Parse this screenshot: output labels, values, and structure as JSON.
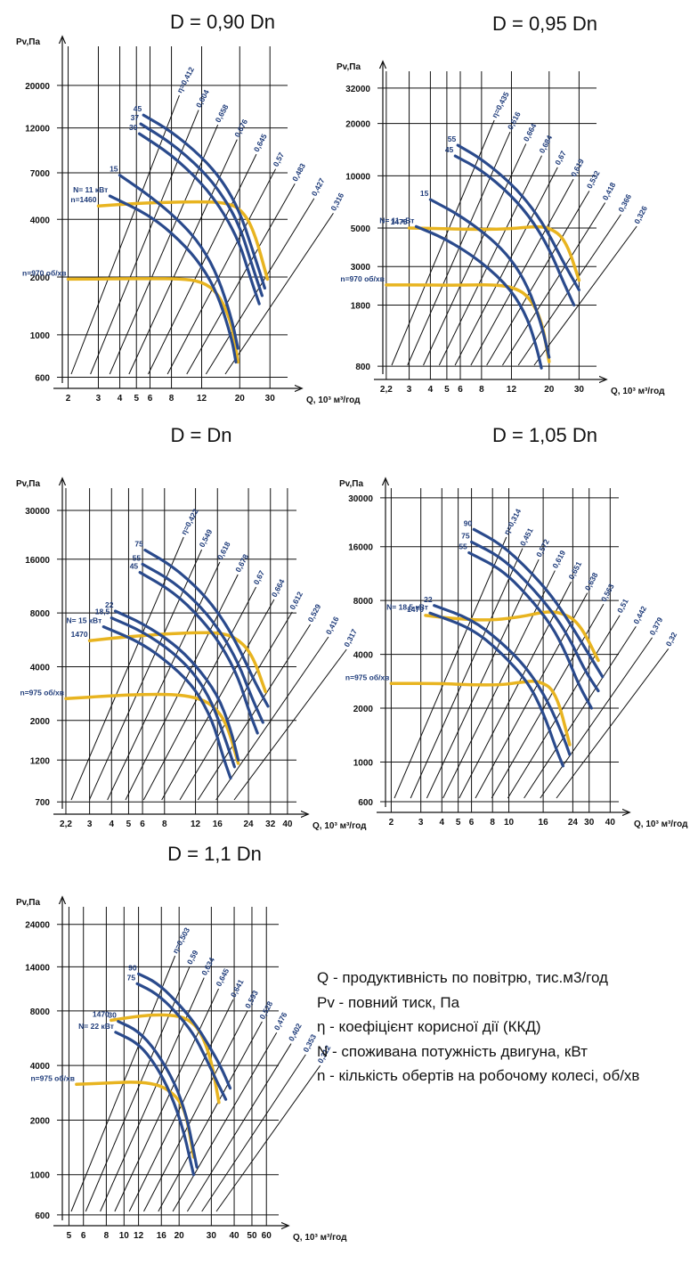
{
  "colors": {
    "power_line": "#2a4a8c",
    "speed_curve": "#e8b420",
    "grid": "#111111"
  },
  "chart_data": [
    {
      "type": "line",
      "title": "D = 0,90 Dn",
      "ylabel": "Pv,Па",
      "xlabel": "Q, 10³ м³/год",
      "x_scale": "log",
      "y_scale": "log",
      "xlim": [
        1.85,
        38
      ],
      "ylim": [
        560,
        32000
      ],
      "x_ticks": [
        2,
        3,
        4,
        5,
        6,
        8,
        12,
        20,
        30
      ],
      "y_ticks": [
        600,
        1000,
        2000,
        4000,
        7000,
        12000,
        20000
      ],
      "x_tick_labels": [
        "2",
        "3",
        "4",
        "5",
        "6",
        "8",
        "12",
        "20",
        "30"
      ],
      "y_tick_labels": [
        "600",
        "1000",
        "2000",
        "4000",
        "7000",
        "12000",
        "20000"
      ],
      "grid": true,
      "series": [
        {
          "name": "n=1460",
          "kind": "speed",
          "x": [
            3.0,
            5.0,
            8.0,
            12.0,
            16.0,
            20.0,
            24.0,
            29.0
          ],
          "y": [
            4700,
            4850,
            4920,
            4950,
            4900,
            4600,
            3600,
            1950
          ]
        },
        {
          "name": "n=970 об/хв",
          "kind": "speed",
          "x": [
            2.0,
            4.0,
            6.0,
            9.0,
            12.0,
            15.0,
            18.0,
            19.5
          ],
          "y": [
            1950,
            1960,
            1960,
            1960,
            1900,
            1650,
            1150,
            720
          ]
        },
        {
          "name": "45",
          "kind": "power",
          "x": [
            5.5,
            8.0,
            12.0,
            16.0,
            20.0,
            24.0,
            28.0
          ],
          "y": [
            14000,
            11500,
            8500,
            6300,
            4400,
            2700,
            1750
          ]
        },
        {
          "name": "37",
          "kind": "power",
          "x": [
            5.3,
            8.0,
            12.0,
            16.0,
            20.0,
            24.0,
            27.0
          ],
          "y": [
            12600,
            10000,
            7300,
            5300,
            3700,
            2200,
            1600
          ]
        },
        {
          "name": "30",
          "kind": "power",
          "x": [
            5.2,
            8.0,
            12.0,
            16.0,
            20.0,
            23.0,
            26.0
          ],
          "y": [
            11200,
            8700,
            6200,
            4400,
            3000,
            2000,
            1450
          ]
        },
        {
          "name": "15",
          "kind": "power",
          "x": [
            4.0,
            6.0,
            9.0,
            12.0,
            15.0,
            18.0,
            19.5
          ],
          "y": [
            6800,
            5300,
            3900,
            2900,
            2000,
            1200,
            850
          ]
        },
        {
          "name": "N= 11 кВт",
          "kind": "power",
          "x": [
            3.5,
            6.0,
            9.0,
            12.0,
            15.0,
            18.0,
            19.0
          ],
          "y": [
            5300,
            4200,
            3100,
            2300,
            1600,
            950,
            720
          ]
        }
      ],
      "efficiency_labels": [
        "η=0,412",
        "0,604",
        "0,658",
        "0,676",
        "0,645",
        "0,57",
        "0,483",
        "0,427",
        "0,316"
      ],
      "speed_labels": [
        "1460",
        "n=970 об/хв"
      ]
    },
    {
      "type": "line",
      "title": "D = 0,95 Dn",
      "ylabel": "Pv,Па",
      "xlabel": "Q, 10³ м³/год",
      "x_scale": "log",
      "y_scale": "log",
      "xlim": [
        2.1,
        38
      ],
      "ylim": [
        720,
        40000
      ],
      "x_ticks": [
        2.2,
        3,
        4,
        5,
        6,
        8,
        12,
        20,
        30
      ],
      "y_ticks": [
        800,
        1800,
        3000,
        5000,
        10000,
        20000,
        32000
      ],
      "x_tick_labels": [
        "2,2",
        "3",
        "4",
        "5",
        "6",
        "8",
        "12",
        "20",
        "30"
      ],
      "y_tick_labels": [
        "800",
        "1800",
        "3000",
        "5000",
        "10000",
        "20000",
        "32000"
      ],
      "grid": true,
      "series": [
        {
          "name": "1475",
          "kind": "speed",
          "x": [
            3.0,
            5.0,
            8.0,
            12.0,
            16.0,
            20.0,
            25.0,
            30.0
          ],
          "y": [
            5000,
            4950,
            4900,
            4950,
            5100,
            5050,
            4300,
            2500
          ]
        },
        {
          "name": "n=970 об/хв",
          "kind": "speed",
          "x": [
            2.2,
            4.0,
            6.0,
            9.0,
            12.0,
            15.0,
            18.0,
            20.0
          ],
          "y": [
            2350,
            2350,
            2340,
            2360,
            2300,
            2050,
            1500,
            850
          ]
        },
        {
          "name": "55",
          "kind": "power",
          "x": [
            5.8,
            8.0,
            12.0,
            16.0,
            20.0,
            25.0,
            30.0
          ],
          "y": [
            15000,
            12500,
            9000,
            6500,
            4600,
            3000,
            2200
          ]
        },
        {
          "name": "45",
          "kind": "power",
          "x": [
            5.6,
            8.0,
            12.0,
            16.0,
            20.0,
            24.0,
            28.0
          ],
          "y": [
            13000,
            10800,
            7700,
            5500,
            3800,
            2500,
            1800
          ]
        },
        {
          "name": "15",
          "kind": "power",
          "x": [
            4.0,
            6.0,
            9.0,
            12.0,
            15.0,
            18.0,
            20.0
          ],
          "y": [
            7300,
            5900,
            4400,
            3300,
            2300,
            1400,
            900
          ]
        },
        {
          "name": "N= 11 кВт",
          "kind": "power",
          "x": [
            3.3,
            5.0,
            8.0,
            12.0,
            15.0,
            17.0,
            18.0
          ],
          "y": [
            5100,
            4300,
            3200,
            2200,
            1500,
            1000,
            780
          ]
        }
      ],
      "efficiency_labels": [
        "η=0,435",
        "0,616",
        "0,664",
        "0,684",
        "0,67",
        "0,619",
        "0,532",
        "0,418",
        "0,366",
        "0,326"
      ],
      "speed_labels": [
        "1475",
        "n=970 об/хв"
      ]
    },
    {
      "type": "line",
      "title": "D = Dn",
      "ylabel": "Pv,Па",
      "xlabel": "Q, 10³ м³/год",
      "x_scale": "log",
      "y_scale": "log",
      "xlim": [
        2.1,
        45
      ],
      "ylim": [
        640,
        40000
      ],
      "x_ticks": [
        2.2,
        3,
        4,
        5,
        6,
        8,
        12,
        16,
        24,
        32,
        40
      ],
      "y_ticks": [
        700,
        1200,
        2000,
        4000,
        8000,
        16000,
        30000
      ],
      "x_tick_labels": [
        "2,2",
        "3",
        "4",
        "5",
        "6",
        "8",
        "12",
        "16",
        "24",
        "32",
        "40"
      ],
      "y_tick_labels": [
        "700",
        "1200",
        "2000",
        "4000",
        "8000",
        "16000",
        "30000"
      ],
      "grid": true,
      "series": [
        {
          "name": "1470",
          "kind": "speed",
          "x": [
            3.0,
            5.0,
            8.0,
            12.0,
            16.0,
            20.0,
            25.0,
            30.0
          ],
          "y": [
            5600,
            5900,
            6100,
            6200,
            6200,
            5900,
            4800,
            2900
          ]
        },
        {
          "name": "n=975 об/хв",
          "kind": "speed",
          "x": [
            2.2,
            4.0,
            6.0,
            9.0,
            12.0,
            15.0,
            18.0,
            21.0
          ],
          "y": [
            2650,
            2750,
            2800,
            2800,
            2700,
            2450,
            1950,
            1150
          ]
        },
        {
          "name": "75",
          "kind": "power",
          "x": [
            6.2,
            9.0,
            13.0,
            17.0,
            21.0,
            26.0,
            31.0
          ],
          "y": [
            18000,
            14500,
            10500,
            7500,
            5200,
            3300,
            2400
          ]
        },
        {
          "name": "55",
          "kind": "power",
          "x": [
            6.0,
            9.0,
            13.0,
            17.0,
            21.0,
            25.0,
            29.0
          ],
          "y": [
            15000,
            12000,
            8600,
            6100,
            4200,
            2700,
            1950
          ]
        },
        {
          "name": "45",
          "kind": "power",
          "x": [
            5.8,
            9.0,
            13.0,
            17.0,
            21.0,
            24.0,
            27.0
          ],
          "y": [
            13500,
            10500,
            7400,
            5200,
            3500,
            2300,
            1700
          ]
        },
        {
          "name": "22",
          "kind": "power",
          "x": [
            4.2,
            6.0,
            9.0,
            12.0,
            16.0,
            19.0,
            21.0
          ],
          "y": [
            8200,
            7000,
            5400,
            4100,
            2800,
            1800,
            1200
          ]
        },
        {
          "name": "18,5",
          "kind": "power",
          "x": [
            4.0,
            6.0,
            9.0,
            12.0,
            15.0,
            18.0,
            20.0
          ],
          "y": [
            7500,
            6300,
            4800,
            3600,
            2500,
            1500,
            1100
          ]
        },
        {
          "name": "N= 15 кВт",
          "kind": "power",
          "x": [
            3.6,
            6.0,
            9.0,
            12.0,
            15.0,
            17.0,
            19.0
          ],
          "y": [
            6700,
            5400,
            4000,
            3000,
            2000,
            1300,
            950
          ]
        }
      ],
      "efficiency_labels": [
        "η=0,422",
        "0,549",
        "0,618",
        "0,678",
        "0,67",
        "0,664",
        "0,612",
        "0,529",
        "0,416",
        "0,317"
      ],
      "speed_labels": [
        "1470",
        "n=975 об/хв"
      ]
    },
    {
      "type": "line",
      "title": "D = 1,05 Dn",
      "ylabel": "Pv,Па",
      "xlabel": "Q, 10³ м³/год",
      "x_scale": "log",
      "y_scale": "log",
      "xlim": [
        1.85,
        45
      ],
      "ylim": [
        560,
        34000
      ],
      "x_ticks": [
        2,
        3,
        4,
        5,
        6,
        8,
        10,
        16,
        24,
        30,
        40
      ],
      "y_ticks": [
        600,
        1000,
        2000,
        4000,
        8000,
        16000,
        30000
      ],
      "x_tick_labels": [
        "2",
        "3",
        "4",
        "5",
        "6",
        "8",
        "10",
        "16",
        "24",
        "30",
        "40"
      ],
      "y_tick_labels": [
        "600",
        "1000",
        "2000",
        "4000",
        "8000",
        "16000",
        "30000"
      ],
      "grid": true,
      "series": [
        {
          "name": "1470",
          "kind": "speed",
          "x": [
            3.2,
            5.0,
            8.0,
            12.0,
            16.0,
            20.0,
            26.0,
            34.0
          ],
          "y": [
            6600,
            6300,
            6200,
            6500,
            6900,
            6900,
            6100,
            3700
          ]
        },
        {
          "name": "n=975 об/хв",
          "kind": "speed",
          "x": [
            2.0,
            4.0,
            6.0,
            9.0,
            12.0,
            15.0,
            19.0,
            23.0
          ],
          "y": [
            2750,
            2750,
            2700,
            2700,
            2800,
            2850,
            2500,
            1250
          ]
        },
        {
          "name": "90",
          "kind": "power",
          "x": [
            6.2,
            9.0,
            13.0,
            18.0,
            23.0,
            29.0,
            36.0
          ],
          "y": [
            20000,
            16500,
            12000,
            8500,
            6000,
            4200,
            3000
          ]
        },
        {
          "name": "75",
          "kind": "power",
          "x": [
            6.0,
            9.0,
            13.0,
            18.0,
            23.0,
            28.0,
            34.0
          ],
          "y": [
            17000,
            14000,
            10000,
            7000,
            4900,
            3300,
            2500
          ]
        },
        {
          "name": "55",
          "kind": "power",
          "x": [
            5.8,
            9.0,
            13.0,
            18.0,
            22.0,
            26.0,
            31.0
          ],
          "y": [
            14800,
            12000,
            8500,
            5800,
            4000,
            2700,
            2000
          ]
        },
        {
          "name": "22",
          "kind": "power",
          "x": [
            3.6,
            6.0,
            9.0,
            13.0,
            17.0,
            21.0,
            23.0
          ],
          "y": [
            7500,
            6300,
            4700,
            3300,
            2200,
            1400,
            1100
          ]
        },
        {
          "name": "N= 18,5 кВт",
          "kind": "power",
          "x": [
            3.4,
            6.0,
            9.0,
            13.0,
            16.0,
            19.0,
            21.0
          ],
          "y": [
            6800,
            5600,
            4100,
            2800,
            1900,
            1200,
            950
          ]
        }
      ],
      "efficiency_labels": [
        "η=0,314",
        "0,451",
        "0,572",
        "0,619",
        "0,651",
        "0,638",
        "0,563",
        "0,51",
        "0,442",
        "0,379",
        "0,32"
      ],
      "speed_labels": [
        "1470",
        "n=975 об/хв"
      ]
    },
    {
      "type": "line",
      "title": "D = 1,1 Dn",
      "ylabel": "Pv,Па",
      "xlabel": "Q, 10³ м³/год",
      "x_scale": "log",
      "y_scale": "log",
      "xlim": [
        4.6,
        70
      ],
      "ylim": [
        560,
        30000
      ],
      "x_ticks": [
        5,
        6,
        8,
        10,
        12,
        16,
        20,
        30,
        40,
        50,
        60
      ],
      "y_ticks": [
        600,
        1000,
        2000,
        4000,
        8000,
        14000,
        24000
      ],
      "x_tick_labels": [
        "5",
        "6",
        "8",
        "10",
        "12",
        "16",
        "20",
        "30",
        "40",
        "50",
        "60"
      ],
      "y_tick_labels": [
        "600",
        "1000",
        "2000",
        "4000",
        "8000",
        "14000",
        "24000"
      ],
      "grid": true,
      "series": [
        {
          "name": "1470",
          "kind": "speed",
          "x": [
            8.5,
            11.0,
            14.0,
            18.0,
            22.0,
            26.0,
            30.0,
            33.0
          ],
          "y": [
            7100,
            7400,
            7600,
            7600,
            7300,
            6300,
            4300,
            2500
          ]
        },
        {
          "name": "n=975 об/хв",
          "kind": "speed",
          "x": [
            5.5,
            8.0,
            11.0,
            14.0,
            17.0,
            20.0,
            22.0,
            24.0
          ],
          "y": [
            3150,
            3200,
            3250,
            3200,
            3000,
            2600,
            2100,
            1250
          ]
        },
        {
          "name": "90",
          "kind": "power",
          "x": [
            12.0,
            15.0,
            19.0,
            24.0,
            29.0,
            34.0,
            38.0
          ],
          "y": [
            12800,
            11500,
            9200,
            7000,
            5200,
            3900,
            3000
          ]
        },
        {
          "name": "75",
          "kind": "power",
          "x": [
            11.8,
            15.0,
            19.0,
            24.0,
            28.0,
            32.0,
            36.0
          ],
          "y": [
            11300,
            10000,
            8000,
            6000,
            4400,
            3300,
            2600
          ]
        },
        {
          "name": "30",
          "kind": "power",
          "x": [
            9.3,
            12.0,
            15.0,
            19.0,
            22.0,
            24.0,
            25.0
          ],
          "y": [
            7000,
            6200,
            4800,
            3200,
            2100,
            1350,
            1100
          ]
        },
        {
          "name": "N= 22 кВт",
          "kind": "power",
          "x": [
            9.0,
            12.0,
            15.0,
            18.0,
            21.0,
            23.0,
            24.0
          ],
          "y": [
            6100,
            5300,
            4000,
            2800,
            1800,
            1200,
            1000
          ]
        }
      ],
      "efficiency_labels": [
        "η=0,503",
        "0,59",
        "0,634",
        "0,645",
        "0,641",
        "0,593",
        "0,528",
        "0,476",
        "0,402",
        "0,353",
        "0,312"
      ],
      "speed_labels": [
        "1470",
        "n=975 об/хв"
      ]
    }
  ],
  "legend": {
    "lines": [
      "Q - продуктивність по повітрю, тис.м3/год",
      "Pv - повний тиск, Па",
      "η - коефіцієнт корисної дії (ККД)",
      "N - споживана потужність двигуна, кВт",
      "n - кількість обертів на робочому колесі, об/хв"
    ]
  }
}
